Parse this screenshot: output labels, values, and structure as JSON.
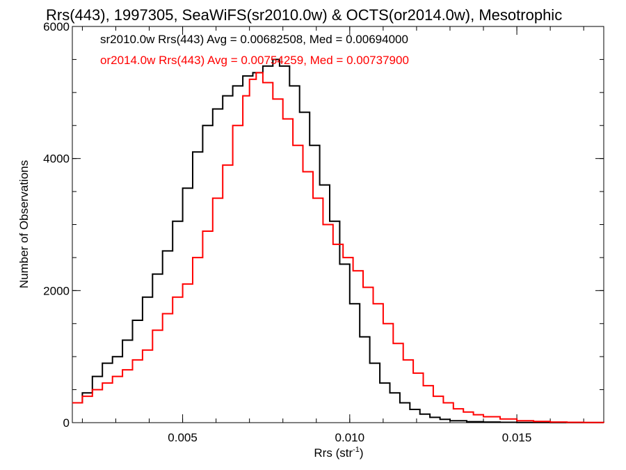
{
  "chart_data": {
    "type": "line",
    "title": "Rrs(443), 1997305, SeaWiFS(sr2010.0w) & OCTS(or2014.0w), Mesotrophic",
    "xlabel_main": "Rrs (str",
    "xlabel_sup": "-1",
    "xlabel_close": ")",
    "ylabel": "Number of Observations",
    "xlim": [
      0.0017,
      0.0176
    ],
    "ylim": [
      0,
      6000
    ],
    "x_ticks": [
      {
        "value": 0.005,
        "label": "0.005"
      },
      {
        "value": 0.01,
        "label": "0.010"
      },
      {
        "value": 0.015,
        "label": "0.015"
      }
    ],
    "y_ticks": [
      {
        "value": 0,
        "label": "0"
      },
      {
        "value": 2000,
        "label": "2000"
      },
      {
        "value": 4000,
        "label": "4000"
      },
      {
        "value": 6000,
        "label": "6000"
      }
    ],
    "x_minor_step": 0.001,
    "y_minor_step": 500,
    "grid": false,
    "legend_position": "top-left",
    "series": [
      {
        "name": "sr2010.0w",
        "legend_text": "sr2010.0w Rrs(443) Avg = 0.00682508, Med = 0.00694000",
        "color": "#000000",
        "x": [
          0.0017,
          0.002,
          0.0023,
          0.0026,
          0.0029,
          0.0032,
          0.0035,
          0.0038,
          0.0041,
          0.0044,
          0.0047,
          0.005,
          0.0053,
          0.0056,
          0.0059,
          0.0062,
          0.0065,
          0.0068,
          0.0071,
          0.0074,
          0.0077,
          0.0079,
          0.0082,
          0.0085,
          0.0088,
          0.0091,
          0.0094,
          0.0097,
          0.01,
          0.0103,
          0.0106,
          0.0109,
          0.0112,
          0.0115,
          0.0118,
          0.0121,
          0.0124,
          0.0127,
          0.013,
          0.0135,
          0.014,
          0.0145,
          0.015,
          0.016,
          0.0176
        ],
        "y": [
          300,
          450,
          700,
          900,
          1000,
          1250,
          1550,
          1900,
          2250,
          2600,
          3050,
          3550,
          4100,
          4500,
          4750,
          4950,
          5100,
          5250,
          5300,
          5400,
          5500,
          5400,
          5100,
          4700,
          4200,
          3600,
          3050,
          2400,
          1800,
          1300,
          900,
          600,
          450,
          300,
          200,
          130,
          80,
          50,
          30,
          15,
          10,
          5,
          3,
          1,
          0
        ]
      },
      {
        "name": "or2014.0w",
        "legend_text": "or2014.0w Rrs(443) Avg = 0.00754259, Med = 0.00737900",
        "color": "#ff0000",
        "x": [
          0.0017,
          0.002,
          0.0023,
          0.0026,
          0.0029,
          0.0032,
          0.0035,
          0.0038,
          0.0041,
          0.0044,
          0.0047,
          0.005,
          0.0053,
          0.0056,
          0.0059,
          0.0062,
          0.0065,
          0.0068,
          0.007,
          0.0072,
          0.0074,
          0.0077,
          0.008,
          0.0083,
          0.0086,
          0.0089,
          0.0092,
          0.0095,
          0.0098,
          0.0101,
          0.0104,
          0.0107,
          0.011,
          0.0113,
          0.0116,
          0.0119,
          0.0122,
          0.0125,
          0.0128,
          0.0131,
          0.0134,
          0.0137,
          0.014,
          0.0145,
          0.015,
          0.0155,
          0.016,
          0.0165,
          0.017,
          0.0176
        ],
        "y": [
          300,
          400,
          500,
          600,
          700,
          800,
          950,
          1100,
          1400,
          1650,
          1900,
          2100,
          2500,
          2900,
          3400,
          3900,
          4500,
          4950,
          5200,
          5300,
          5150,
          4900,
          4600,
          4200,
          3800,
          3400,
          3000,
          2700,
          2500,
          2300,
          2050,
          1800,
          1500,
          1200,
          950,
          750,
          560,
          400,
          300,
          210,
          160,
          120,
          90,
          55,
          30,
          18,
          10,
          5,
          2,
          0
        ]
      }
    ]
  }
}
